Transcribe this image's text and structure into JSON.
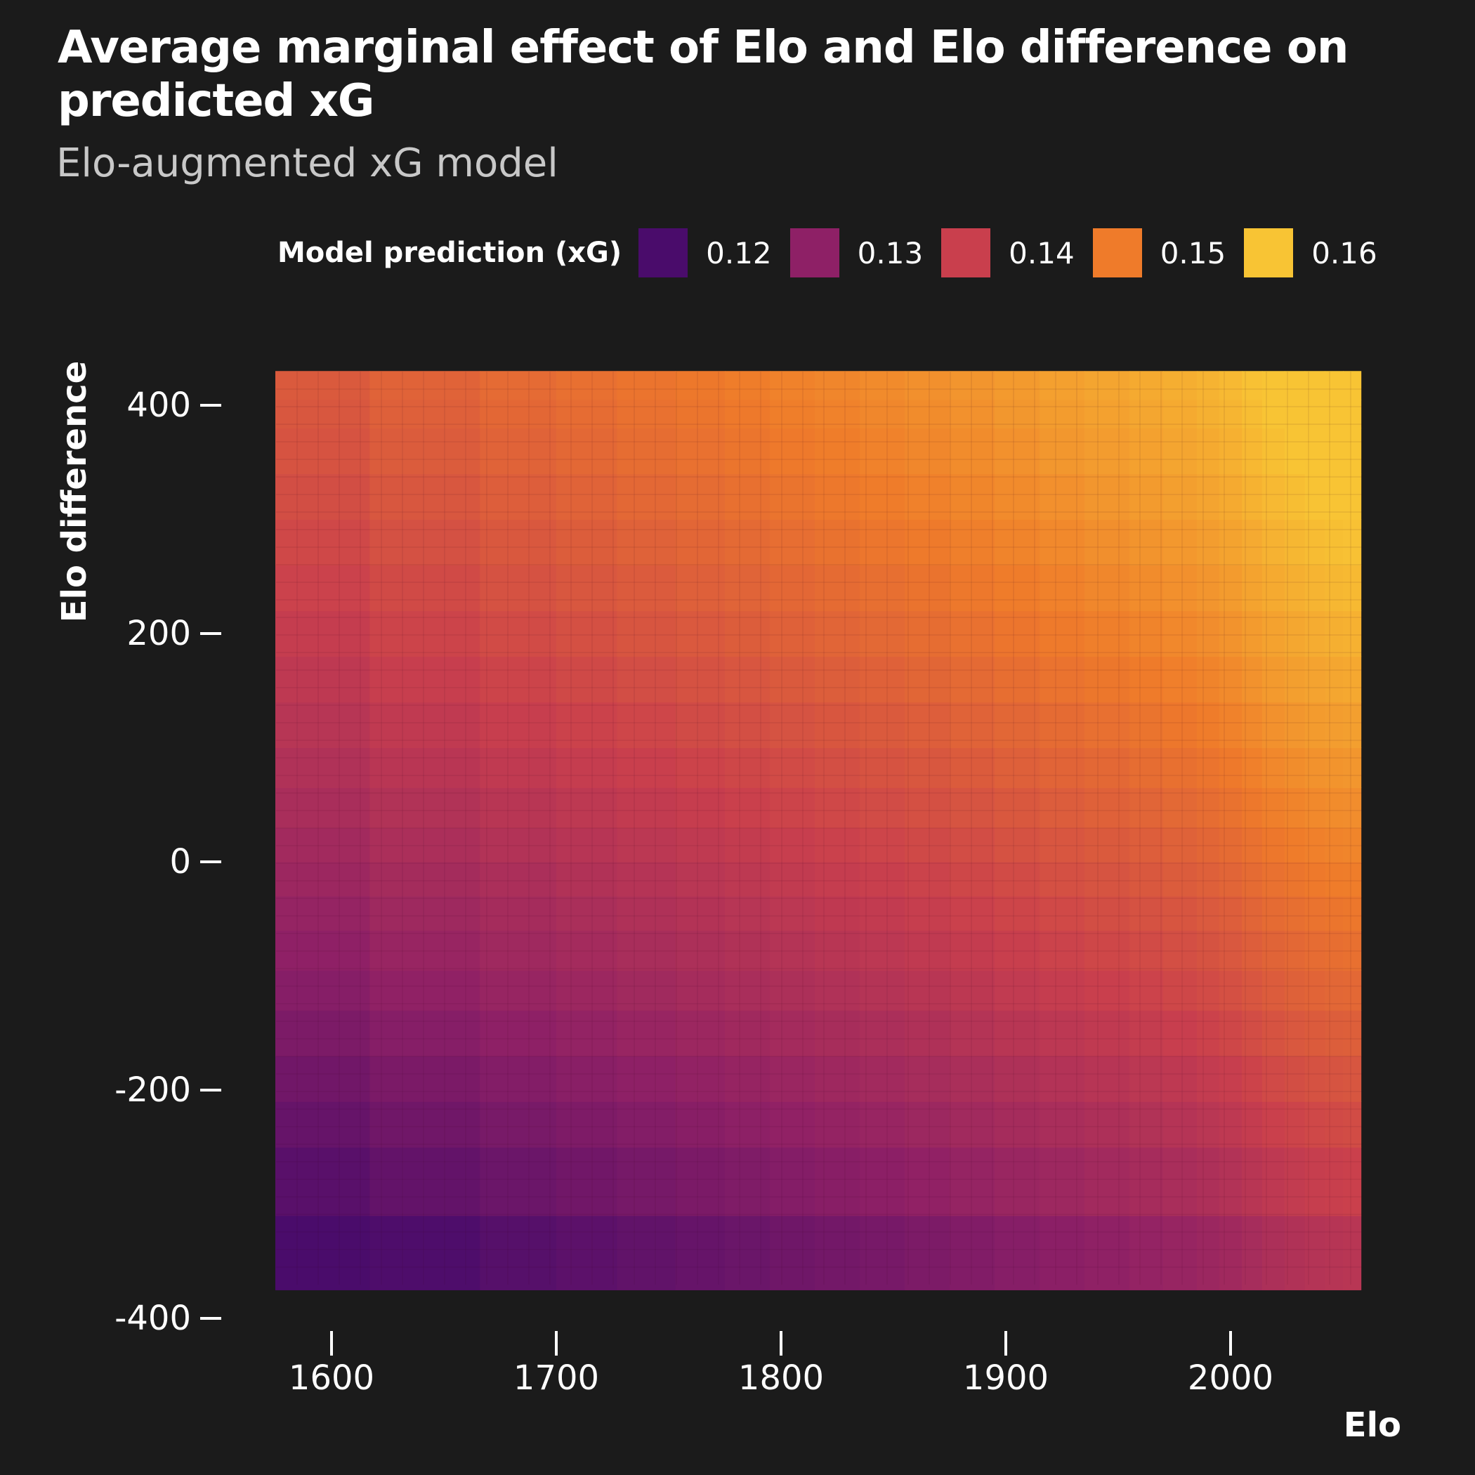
{
  "title": "Average marginal effect of Elo and Elo difference on predicted xG",
  "subtitle": "Elo-augmented xG model",
  "legend": {
    "title": "Model prediction (xG)",
    "items": [
      {
        "label": "0.12",
        "color": "#4a0c6b"
      },
      {
        "label": "0.13",
        "color": "#8e2066"
      },
      {
        "label": "0.14",
        "color": "#c93f4d"
      },
      {
        "label": "0.15",
        "color": "#ef7b2a"
      },
      {
        "label": "0.16",
        "color": "#f8c434"
      }
    ]
  },
  "chart_data": {
    "type": "heatmap",
    "xlabel": "Elo",
    "ylabel": "Elo difference",
    "xlim": [
      1575,
      2058
    ],
    "ylim": [
      -375,
      430
    ],
    "xticks": [
      1600,
      1700,
      1800,
      1900,
      2000
    ],
    "yticks": [
      -400,
      -200,
      0,
      200,
      400
    ],
    "x_breaks": [
      1575,
      1617,
      1666,
      1700,
      1727,
      1753,
      1775,
      1795,
      1815,
      1835,
      1855,
      1875,
      1895,
      1915,
      1935,
      1955,
      1970,
      1985,
      1995,
      2005,
      2014,
      2024,
      2033,
      2042,
      2050,
      2058
    ],
    "y_breaks": [
      -375,
      -310,
      -250,
      -210,
      -170,
      -130,
      -95,
      -60,
      -30,
      0,
      30,
      65,
      100,
      140,
      180,
      220,
      260,
      300,
      340,
      380,
      405,
      430
    ],
    "colorscale_values": [
      0.12,
      0.13,
      0.14,
      0.15,
      0.16
    ],
    "colorscale_colors": [
      "#4a0c6b",
      "#8e2066",
      "#c93f4d",
      "#ef7b2a",
      "#f8c434"
    ],
    "grid": false,
    "legend_position": "top",
    "model": "additive surface estimated from the picture",
    "x_effect": {
      "x": [
        1575,
        1600,
        1650,
        1700,
        1750,
        1800,
        1850,
        1900,
        1950,
        1985,
        2000,
        2020,
        2040,
        2058
      ],
      "values": [
        0.0,
        0.001,
        0.0026,
        0.004,
        0.0054,
        0.007,
        0.0086,
        0.0104,
        0.0122,
        0.0136,
        0.0148,
        0.017,
        0.0184,
        0.019
      ]
    },
    "y_effect": {
      "y": [
        -375,
        -300,
        -200,
        -100,
        0,
        100,
        200,
        300,
        430
      ],
      "values": [
        0.1165,
        0.1205,
        0.1245,
        0.1285,
        0.132,
        0.1355,
        0.1385,
        0.1412,
        0.144
      ]
    }
  }
}
